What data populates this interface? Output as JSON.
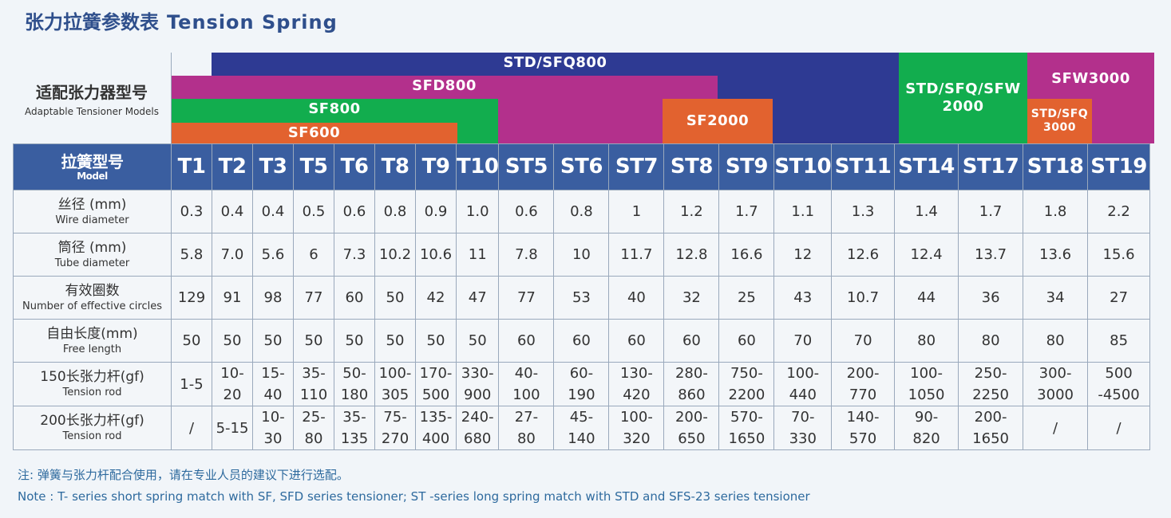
{
  "title": {
    "zh": "张力拉簧参数表",
    "en": "Tension Spring"
  },
  "adaptable": {
    "zh": "适配张力器型号",
    "en": "Adaptable Tensioner Models"
  },
  "bands": {
    "std_sfq800": "STD/SFQ800",
    "sfd800": "SFD800",
    "sf800": "SF800",
    "sf600": "SF600",
    "sf2000": "SF2000",
    "std_sfq_sfw2000": "STD/SFQ/SFW 2000",
    "sfw3000": "SFW3000",
    "std_sfq3000": "STD/SFQ 3000"
  },
  "colors": {
    "navy": "#2e3a93",
    "magenta": "#b3308c",
    "green": "#12ad4e",
    "orange": "#e2622f",
    "header_blue": "#3a5ea0",
    "note_blue": "#2e6a9e"
  },
  "table": {
    "model_label": {
      "zh": "拉簧型号",
      "en": "Model"
    },
    "models": [
      "T1",
      "T2",
      "T3",
      "T5",
      "T6",
      "T8",
      "T9",
      "T10",
      "ST5",
      "ST6",
      "ST7",
      "ST8",
      "ST9",
      "ST10",
      "ST11",
      "ST14",
      "ST17",
      "ST18",
      "ST19"
    ],
    "rows": [
      {
        "zh": "丝径 (mm)",
        "en": "Wire diameter",
        "values": [
          "0.3",
          "0.4",
          "0.4",
          "0.5",
          "0.6",
          "0.8",
          "0.9",
          "1.0",
          "0.6",
          "0.8",
          "1",
          "1.2",
          "1.7",
          "1.1",
          "1.3",
          "1.4",
          "1.7",
          "1.8",
          "2.2"
        ]
      },
      {
        "zh": "筒径 (mm)",
        "en": "Tube diameter",
        "values": [
          "5.8",
          "7.0",
          "5.6",
          "6",
          "7.3",
          "10.2",
          "10.6",
          "11",
          "7.8",
          "10",
          "11.7",
          "12.8",
          "16.6",
          "12",
          "12.6",
          "12.4",
          "13.7",
          "13.6",
          "15.6"
        ]
      },
      {
        "zh": "有效圈数",
        "en": "Number of effective circles",
        "values": [
          "129",
          "91",
          "98",
          "77",
          "60",
          "50",
          "42",
          "47",
          "77",
          "53",
          "40",
          "32",
          "25",
          "43",
          "10.7",
          "44",
          "36",
          "34",
          "27"
        ]
      },
      {
        "zh": "自由长度(mm)",
        "en": "Free length",
        "values": [
          "50",
          "50",
          "50",
          "50",
          "50",
          "50",
          "50",
          "50",
          "60",
          "60",
          "60",
          "60",
          "60",
          "70",
          "70",
          "80",
          "80",
          "80",
          "85"
        ]
      },
      {
        "zh": "150长张力杆(gf)",
        "en": "Tension rod",
        "values": [
          "1-5",
          "10-\n20",
          "15-\n40",
          "35-\n110",
          "50-\n180",
          "100-\n305",
          "170-\n500",
          "330-\n900",
          "40-\n100",
          "60-\n190",
          "130-\n420",
          "280-\n860",
          "750-\n2200",
          "100-\n440",
          "200-\n770",
          "100-\n1050",
          "250-\n2250",
          "300-\n3000",
          "500\n-4500"
        ]
      },
      {
        "zh": "200长张力杆(gf)",
        "en": "Tension rod",
        "values": [
          "/",
          "5-15",
          "10-\n30",
          "25-\n80",
          "35-\n135",
          "75-\n270",
          "135-\n400",
          "240-\n680",
          "27-\n80",
          "45-\n140",
          "100-\n320",
          "200-\n650",
          "570-\n1650",
          "70-\n330",
          "140-\n570",
          "90-\n820",
          "200-\n1650",
          "/",
          "/"
        ]
      }
    ]
  },
  "notes": {
    "zh": "注: 弹簧与张力杆配合使用，请在专业人员的建议下进行选配。",
    "en": "Note : T- series short spring match with SF, SFD series tensioner; ST -series long spring match with STD and SFS-23 series tensioner"
  }
}
